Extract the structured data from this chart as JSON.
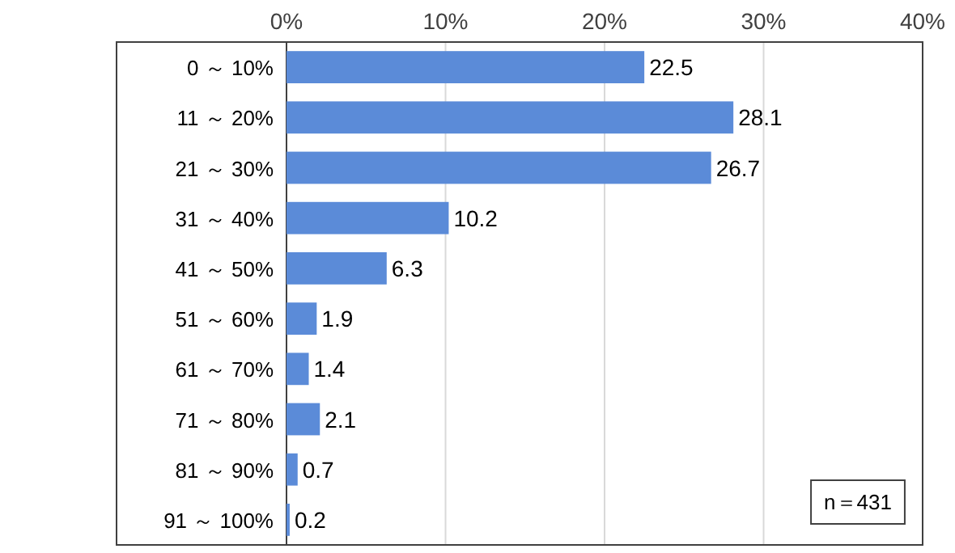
{
  "chart_data": {
    "type": "bar",
    "orientation": "horizontal",
    "categories": [
      "0 ～ 10%",
      "11 ～ 20%",
      "21 ～ 30%",
      "31 ～ 40%",
      "41 ～ 50%",
      "51 ～ 60%",
      "61 ～ 70%",
      "71 ～ 80%",
      "81 ～ 90%",
      "91 ～ 100%"
    ],
    "values": [
      22.5,
      28.1,
      26.7,
      10.2,
      6.3,
      1.9,
      1.4,
      2.1,
      0.7,
      0.2
    ],
    "color": "#5b8bd8",
    "xlim": [
      0,
      40
    ],
    "xticks": [
      {
        "value": 0,
        "label": "0%"
      },
      {
        "value": 10,
        "label": "10%"
      },
      {
        "value": 20,
        "label": "20%"
      },
      {
        "value": 30,
        "label": "30%"
      },
      {
        "value": 40,
        "label": "40%"
      }
    ],
    "grid": "x",
    "data_labels": true,
    "annotations": [
      "n＝431"
    ]
  }
}
